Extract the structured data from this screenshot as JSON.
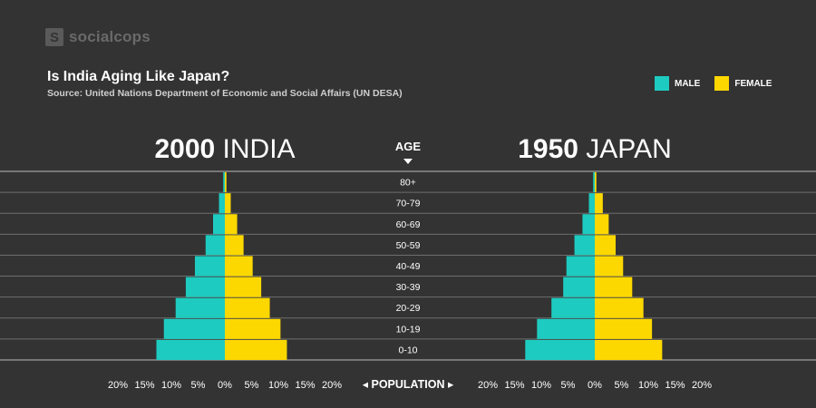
{
  "brand": {
    "icon_letter": "S",
    "name": "socialcops"
  },
  "header": {
    "title": "Is India Aging Like Japan?",
    "subtitle": "Source: United Nations Department of Economic and Social Affairs (UN DESA)"
  },
  "legend": {
    "male_label": "MALE",
    "female_label": "FEMALE"
  },
  "colors": {
    "male": "#1ecbc0",
    "female": "#fdd800",
    "background": "#333333",
    "gridline": "#8a8a8a"
  },
  "axis": {
    "age_label": "AGE",
    "population_label": "POPULATION",
    "ticks": [
      "20%",
      "15%",
      "10%",
      "5%",
      "0%",
      "5%",
      "10%",
      "15%",
      "20%"
    ]
  },
  "chart_data": [
    {
      "type": "bar",
      "orientation": "horizontal-butterfly",
      "title_year": "2000",
      "title_country": "INDIA",
      "categories": [
        "80+",
        "70-79",
        "60-69",
        "50-59",
        "40-49",
        "30-39",
        "20-29",
        "10-19",
        "0-10"
      ],
      "series": [
        {
          "name": "MALE",
          "values": [
            0.3,
            1.1,
            2.2,
            3.6,
            5.6,
            7.3,
            9.2,
            11.4,
            12.8
          ]
        },
        {
          "name": "FEMALE",
          "values": [
            0.3,
            1.1,
            2.3,
            3.5,
            5.2,
            6.8,
            8.4,
            10.4,
            11.6
          ]
        }
      ],
      "xlim": [
        -20,
        20
      ]
    },
    {
      "type": "bar",
      "orientation": "horizontal-butterfly",
      "title_year": "1950",
      "title_country": "JAPAN",
      "categories": [
        "80+",
        "70-79",
        "60-69",
        "50-59",
        "40-49",
        "30-39",
        "20-29",
        "10-19",
        "0-10"
      ],
      "series": [
        {
          "name": "MALE",
          "values": [
            0.3,
            1.1,
            2.3,
            3.8,
            5.3,
            5.9,
            8.1,
            10.8,
            13.0
          ]
        },
        {
          "name": "FEMALE",
          "values": [
            0.3,
            1.5,
            2.6,
            3.9,
            5.3,
            7.0,
            9.1,
            10.7,
            12.6
          ]
        }
      ],
      "xlim": [
        -20,
        20
      ]
    }
  ]
}
